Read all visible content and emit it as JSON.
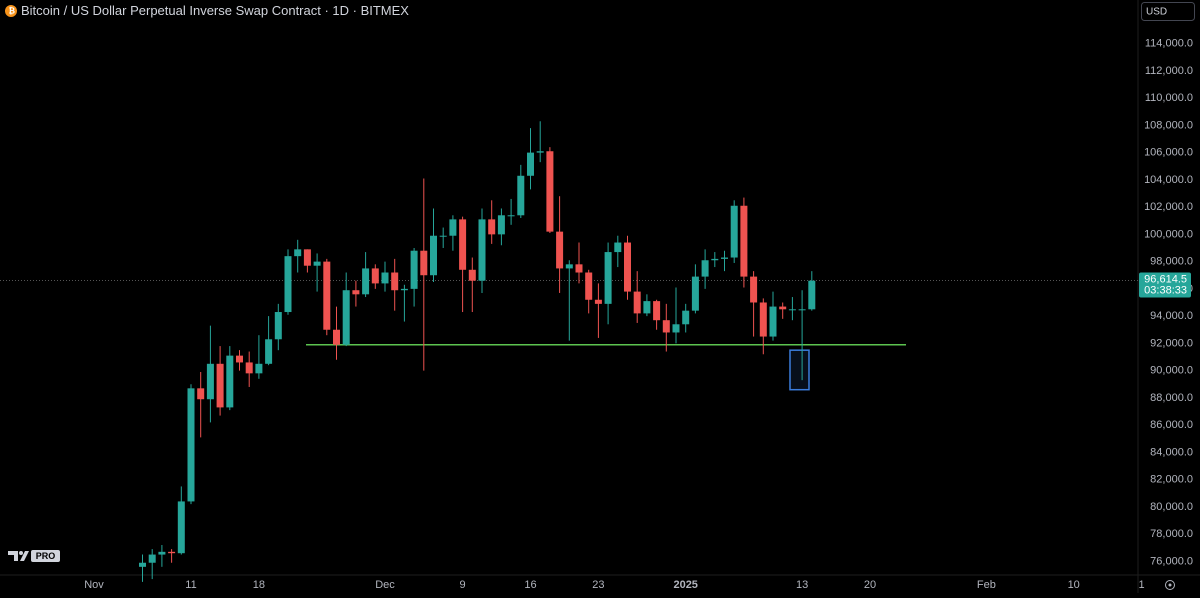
{
  "chart_data": {
    "type": "candlestick",
    "title": "Bitcoin / US Dollar Perpetual Inverse Swap Contract · 1D · BITMEX",
    "currency": "USD",
    "logo_badge": "PRO",
    "up_color": "#26a69a",
    "down_color": "#ef5350",
    "grid": false,
    "categories": [
      "Nov",
      null,
      null,
      null,
      null,
      null,
      null,
      null,
      null,
      null,
      "11",
      null,
      null,
      null,
      null,
      null,
      null,
      "18",
      null,
      null,
      null,
      null,
      null,
      null,
      null,
      null,
      null,
      null,
      null,
      null,
      "Dec",
      null,
      null,
      null,
      null,
      null,
      null,
      null,
      "9",
      null,
      null,
      null,
      null,
      null,
      null,
      "16",
      null,
      null,
      null,
      null,
      null,
      null,
      "23",
      null,
      null,
      null,
      null,
      null,
      null,
      null,
      null,
      "2025",
      null,
      null,
      null,
      null,
      null,
      null,
      null,
      null,
      null,
      null,
      null,
      "13",
      null,
      null,
      null,
      null,
      null,
      null,
      "20",
      null,
      null,
      null,
      null,
      null,
      null,
      null,
      null,
      null,
      null,
      null,
      "Feb",
      null,
      null,
      null,
      null,
      null,
      null,
      null,
      null,
      "10",
      null,
      null,
      null,
      null,
      null,
      null,
      "1"
    ],
    "open": [
      null,
      null,
      null,
      null,
      null,
      75600,
      75900,
      76500,
      76700,
      76600,
      80400,
      88700,
      87900,
      90500,
      87300,
      91100,
      90600,
      89800,
      90500,
      92300,
      94300,
      98400,
      98900,
      97700,
      98000,
      93000,
      91900,
      95900,
      95600,
      97500,
      96400,
      97200,
      95900,
      96000,
      98800,
      97000,
      99900,
      99900,
      101100,
      97400,
      96600,
      101100,
      100000,
      101400,
      101400,
      104300,
      106000,
      106100,
      100200,
      97500,
      97800,
      97200,
      95200,
      94900,
      98700,
      99400,
      95800,
      94200,
      95100,
      93700,
      92800,
      93400,
      94400,
      96900,
      98100,
      98200,
      98300,
      102100,
      96900,
      95000,
      92500,
      94700,
      94500,
      94500,
      94500,
      null,
      null,
      null,
      null,
      null,
      null,
      null,
      null,
      null,
      null,
      null,
      null,
      null,
      null,
      null,
      null,
      null,
      null,
      null,
      null,
      null,
      null,
      null,
      null,
      null,
      null,
      null,
      null,
      null,
      null,
      null,
      null,
      null,
      null
    ],
    "high": [
      null,
      null,
      null,
      null,
      null,
      76500,
      76900,
      77200,
      76900,
      81500,
      89000,
      89900,
      93300,
      91800,
      91800,
      91500,
      91400,
      92600,
      94000,
      94900,
      98900,
      99600,
      98900,
      98600,
      98200,
      94700,
      97200,
      96600,
      98700,
      97800,
      98000,
      98200,
      96300,
      99000,
      104100,
      101900,
      100500,
      101400,
      101300,
      98300,
      101900,
      102500,
      101900,
      102600,
      105100,
      107800,
      108300,
      106400,
      102800,
      98100,
      99400,
      97400,
      96400,
      99400,
      99900,
      99900,
      97300,
      95600,
      95200,
      94900,
      96100,
      94900,
      97800,
      98900,
      98700,
      98800,
      102500,
      102700,
      97300,
      95300,
      95800,
      95000,
      95400,
      95900,
      97300,
      null,
      null,
      null,
      null,
      null,
      null,
      null,
      null,
      null,
      null,
      null,
      null,
      null,
      null,
      null,
      null,
      null,
      null,
      null,
      null,
      null,
      null,
      null,
      null,
      null,
      null,
      null,
      null,
      null,
      null,
      null,
      null,
      null,
      null
    ],
    "low": [
      null,
      null,
      null,
      null,
      null,
      74500,
      74700,
      75600,
      75900,
      76500,
      80200,
      85100,
      86200,
      86700,
      87100,
      90000,
      88800,
      89400,
      90400,
      91500,
      94100,
      97200,
      97200,
      95800,
      92600,
      90800,
      91800,
      94700,
      95400,
      96000,
      95800,
      94400,
      93600,
      94700,
      90000,
      96500,
      99000,
      98800,
      94300,
      94300,
      95700,
      99300,
      99200,
      100700,
      101200,
      103300,
      105300,
      100100,
      95700,
      92200,
      96400,
      94200,
      92400,
      93400,
      97600,
      95200,
      93500,
      94000,
      93000,
      91400,
      92000,
      92800,
      94200,
      96000,
      97600,
      97300,
      97900,
      96100,
      92500,
      91200,
      92200,
      93800,
      93700,
      89300,
      94400,
      null,
      null,
      null,
      null,
      null,
      null,
      null,
      null,
      null,
      null,
      null,
      null,
      null,
      null,
      null,
      null,
      null,
      null,
      null,
      null,
      null,
      null,
      null,
      null,
      null,
      null,
      null,
      null,
      null,
      null,
      null,
      null,
      null,
      null
    ],
    "close": [
      null,
      null,
      null,
      null,
      null,
      75900,
      76500,
      76700,
      76600,
      80400,
      88700,
      87900,
      90500,
      87300,
      91100,
      90600,
      89800,
      90500,
      92300,
      94300,
      98400,
      98900,
      97700,
      98000,
      93000,
      91900,
      95900,
      95600,
      97500,
      96400,
      97200,
      95900,
      96000,
      98800,
      97000,
      99900,
      99900,
      101100,
      97400,
      96600,
      101100,
      100000,
      101400,
      101400,
      104300,
      106000,
      106100,
      100200,
      97500,
      97800,
      97200,
      95200,
      94900,
      98700,
      99400,
      95800,
      94200,
      95100,
      93700,
      92800,
      93400,
      94400,
      96900,
      98100,
      98200,
      98300,
      102100,
      96900,
      95000,
      92500,
      94700,
      94500,
      94500,
      94500,
      96600,
      null,
      null,
      null,
      null,
      null,
      null,
      null,
      null,
      null,
      null,
      null,
      null,
      null,
      null,
      null,
      null,
      null,
      null,
      null,
      null,
      null,
      null,
      null,
      null,
      null,
      null,
      null,
      null,
      null,
      null,
      null,
      null,
      null,
      null
    ],
    "ylim": [
      75000,
      117200
    ],
    "yticks": [
      {
        "value": 76000,
        "label": "76,000.0"
      },
      {
        "value": 78000,
        "label": "78,000.0"
      },
      {
        "value": 80000,
        "label": "80,000.0"
      },
      {
        "value": 82000,
        "label": "82,000.0"
      },
      {
        "value": 84000,
        "label": "84,000.0"
      },
      {
        "value": 86000,
        "label": "86,000.0"
      },
      {
        "value": 88000,
        "label": "88,000.0"
      },
      {
        "value": 90000,
        "label": "90,000.0"
      },
      {
        "value": 92000,
        "label": "92,000.0"
      },
      {
        "value": 94000,
        "label": "94,000.0"
      },
      {
        "value": 96000,
        "label": "96,000.0"
      },
      {
        "value": 98000,
        "label": "98,000.0"
      },
      {
        "value": 100000,
        "label": "100,000.0"
      },
      {
        "value": 102000,
        "label": "102,000.0"
      },
      {
        "value": 104000,
        "label": "104,000.0"
      },
      {
        "value": 106000,
        "label": "106,000.0"
      },
      {
        "value": 108000,
        "label": "108,000.0"
      },
      {
        "value": 110000,
        "label": "110,000.0"
      },
      {
        "value": 112000,
        "label": "112,000.0"
      },
      {
        "value": 114000,
        "label": "114,000.0"
      }
    ],
    "last_price": {
      "value": 96614.5,
      "label": "96,614.5"
    },
    "countdown": "03:38:33",
    "support_line": {
      "value": 91900,
      "color": "#5cc34f"
    },
    "highlight_box": {
      "ylim": [
        88600,
        91500
      ],
      "color": "#3b7ddd"
    }
  }
}
